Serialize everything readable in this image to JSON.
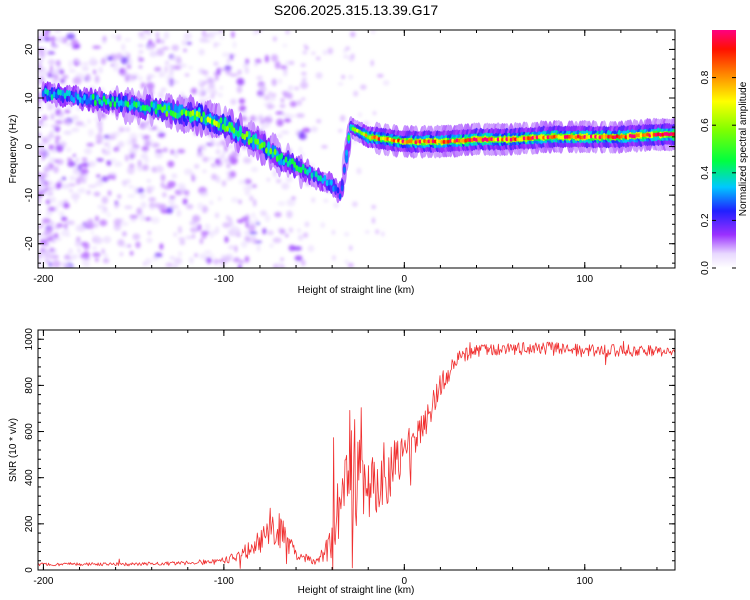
{
  "title": "S206.2025.315.13.39.G17",
  "colors": {
    "snr_line": "#f03030",
    "frame": "#000000",
    "spec_base": "#9b30ff"
  },
  "chart_data": [
    {
      "type": "heatmap",
      "name": "spectrogram",
      "xlabel": "Height of straight line (km)",
      "ylabel": "Frequency (Hz)",
      "xlim": [
        -203,
        150
      ],
      "ylim": [
        -25,
        24
      ],
      "x_ticks": [
        -200,
        -100,
        0,
        100
      ],
      "y_ticks": [
        -20,
        -10,
        0,
        10,
        20
      ],
      "ridge": {
        "x": [
          -200,
          -180,
          -160,
          -140,
          -125,
          -110,
          -100,
          -90,
          -80,
          -70,
          -60,
          -50,
          -40,
          -35,
          -30,
          -25,
          -20,
          -10,
          0,
          20,
          40,
          60,
          80,
          100,
          120,
          140,
          150
        ],
        "freq": [
          11,
          10,
          9,
          8,
          7,
          6,
          4.5,
          2.5,
          0.5,
          -2,
          -4,
          -6,
          -8,
          -10,
          4,
          3,
          2,
          1.5,
          1,
          1,
          1.5,
          1.5,
          2,
          2,
          2,
          2.5,
          2.5
        ],
        "amp": [
          0.35,
          0.35,
          0.4,
          0.4,
          0.5,
          0.55,
          0.55,
          0.5,
          0.5,
          0.45,
          0.4,
          0.35,
          0.3,
          0.3,
          0.5,
          0.6,
          0.75,
          0.8,
          0.85,
          0.9,
          0.9,
          0.9,
          0.9,
          0.9,
          0.9,
          0.95,
          0.95
        ]
      }
    },
    {
      "type": "colorbar",
      "name": "amplitude-colorbar",
      "label": "Normalized spectral amplitude",
      "range": [
        0,
        1
      ],
      "tick_labels": [
        "0.0",
        "0.2",
        "0.4",
        "0.6",
        "0.8"
      ],
      "tick_values": [
        0,
        0.2,
        0.4,
        0.6,
        0.8
      ]
    },
    {
      "type": "line",
      "name": "snr",
      "xlabel": "Height of straight line (km)",
      "ylabel": "SNR (10 * v/v)",
      "xlim": [
        -203,
        150
      ],
      "ylim": [
        0,
        1040
      ],
      "x_ticks": [
        -200,
        -100,
        0,
        100
      ],
      "y_ticks": [
        0,
        200,
        400,
        600,
        800,
        1000
      ],
      "envelope": {
        "x": [
          -200,
          -150,
          -120,
          -100,
          -85,
          -75,
          -70,
          -65,
          -60,
          -50,
          -45,
          -40,
          -35,
          -30,
          -25,
          -20,
          -15,
          -10,
          -5,
          0,
          10,
          20,
          30,
          40,
          60,
          80,
          100,
          120,
          150
        ],
        "mean": [
          25,
          25,
          30,
          40,
          90,
          160,
          180,
          130,
          60,
          40,
          60,
          150,
          300,
          450,
          400,
          350,
          400,
          420,
          450,
          500,
          600,
          800,
          920,
          950,
          960,
          960,
          950,
          950,
          950
        ],
        "amp": [
          12,
          12,
          15,
          25,
          60,
          110,
          140,
          90,
          40,
          30,
          60,
          180,
          320,
          500,
          320,
          260,
          260,
          230,
          200,
          160,
          120,
          80,
          50,
          45,
          45,
          50,
          45,
          45,
          40
        ]
      }
    }
  ]
}
